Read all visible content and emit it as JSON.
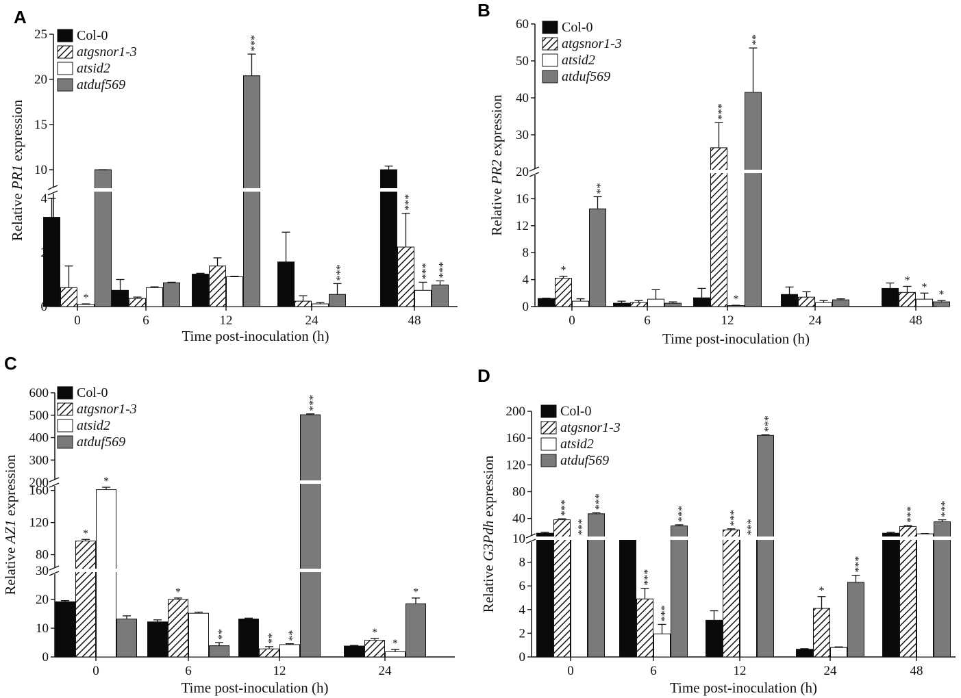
{
  "colors": {
    "col0": "#0a0a0a",
    "atgsnor": "#ffffff",
    "atsid2": "#ffffff",
    "atduf569": "#7a7a7a",
    "axis": "#111111"
  },
  "legend": [
    {
      "label": "Col-0",
      "italic": false
    },
    {
      "label": "atgsnor1-3",
      "italic": true
    },
    {
      "label": "atsid2",
      "italic": true
    },
    {
      "label": "atduf569",
      "italic": true
    }
  ],
  "chart_data": [
    {
      "panel": "A",
      "type": "bar",
      "ylabel_pre": "Relative ",
      "ylabel_gene": "PR1",
      "ylabel_post": " expression",
      "xlabel": "Time post-inoculation (h)",
      "categories": [
        "0",
        "6",
        "12",
        "24",
        "48"
      ],
      "lower_ticks": [
        "0",
        "2",
        "4"
      ],
      "upper_ticks": [
        "10",
        "15",
        "20",
        "25"
      ],
      "break": {
        "lower": [
          0,
          4.3
        ],
        "upper": [
          10,
          25
        ]
      },
      "series": [
        {
          "name": "Col-0",
          "values": [
            3.3,
            0.6,
            1.2,
            1.65,
            9.8
          ],
          "errors": [
            0.7,
            0.4,
            0.03,
            1.1,
            0.6
          ],
          "sig": [
            "",
            "",
            "",
            "",
            ""
          ]
        },
        {
          "name": "atgsnor1-3",
          "values": [
            0.7,
            0.3,
            1.5,
            0.2,
            2.2
          ],
          "errors": [
            0.8,
            0.05,
            0.3,
            0.2,
            1.25
          ],
          "sig": [
            "",
            "",
            "",
            "",
            "***"
          ]
        },
        {
          "name": "atsid2",
          "values": [
            0.08,
            0.7,
            1.1,
            0.1,
            0.6
          ],
          "errors": [
            0.02,
            0.03,
            0.02,
            0.05,
            0.3
          ],
          "sig": [
            "*",
            "",
            "",
            "",
            "***"
          ]
        },
        {
          "name": "atduf569",
          "values": [
            4.6,
            0.88,
            20.4,
            0.45,
            0.8
          ],
          "errors": [
            0.3,
            0.02,
            2.4,
            0.4,
            0.15
          ],
          "sig": [
            "",
            "",
            "***",
            "***",
            "***"
          ]
        }
      ]
    },
    {
      "panel": "B",
      "type": "bar",
      "ylabel_pre": "Relative ",
      "ylabel_gene": "PR2",
      "ylabel_post": " expression",
      "xlabel": "Time post-inoculation (h)",
      "categories": [
        "0",
        "6",
        "12",
        "24",
        "48"
      ],
      "lower_ticks": [
        "0",
        "4",
        "8",
        "12",
        "16",
        "20"
      ],
      "upper_ticks": [
        "30",
        "40",
        "50",
        "60"
      ],
      "break": {
        "lower": [
          0,
          20
        ],
        "upper": [
          20,
          60
        ]
      },
      "series": [
        {
          "name": "Col-0",
          "values": [
            1.2,
            0.5,
            1.3,
            1.8,
            2.7
          ],
          "errors": [
            0.05,
            0.3,
            1.4,
            1.1,
            0.8
          ],
          "sig": [
            "",
            "",
            "",
            "",
            ""
          ]
        },
        {
          "name": "atgsnor1-3",
          "values": [
            4.2,
            0.6,
            26.5,
            1.4,
            2.1
          ],
          "errors": [
            0.3,
            0.3,
            6.8,
            0.8,
            0.9
          ],
          "sig": [
            "*",
            "",
            "***",
            "",
            "*"
          ]
        },
        {
          "name": "atsid2",
          "values": [
            0.8,
            1.1,
            0.15,
            0.6,
            1.1
          ],
          "errors": [
            0.35,
            1.4,
            0.05,
            0.3,
            0.9
          ],
          "sig": [
            "",
            "",
            "*",
            "",
            "*"
          ]
        },
        {
          "name": "atduf569",
          "values": [
            14.5,
            0.5,
            41.5,
            1.0,
            0.7
          ],
          "errors": [
            1.8,
            0.2,
            12.0,
            0.15,
            0.2
          ],
          "sig": [
            "**",
            "",
            "**",
            "",
            "*"
          ]
        }
      ]
    },
    {
      "panel": "C",
      "type": "bar",
      "ylabel_pre": "Relative ",
      "ylabel_gene": "AZ1",
      "ylabel_post": " expression",
      "xlabel": "Time post-inoculation (h)",
      "categories": [
        "0",
        "6",
        "12",
        "24"
      ],
      "lower_ticks": [
        "0",
        "10",
        "20",
        "30"
      ],
      "middle_ticks": [
        "80",
        "120",
        "160"
      ],
      "upper_ticks": [
        "200",
        "300",
        "400",
        "500",
        "600"
      ],
      "break": {
        "lower": [
          0,
          30
        ],
        "middle": [
          60,
          170
        ],
        "upper": [
          200,
          600
        ]
      },
      "series": [
        {
          "name": "Col-0",
          "values": [
            19.2,
            12.2,
            13.2,
            3.8
          ],
          "errors": [
            0.4,
            0.7,
            0.3,
            0.2
          ],
          "sig": [
            "",
            "",
            "",
            ""
          ]
        },
        {
          "name": "atgsnor1-3",
          "values": [
            97,
            20,
            2.8,
            5.8
          ],
          "errors": [
            2,
            0.5,
            0.8,
            0.6
          ],
          "sig": [
            "*",
            "*",
            "**",
            "*"
          ]
        },
        {
          "name": "atsid2",
          "values": [
            161,
            15.2,
            4.3,
            1.8
          ],
          "errors": [
            3,
            0.4,
            0.3,
            0.8
          ],
          "sig": [
            "*",
            "",
            "**",
            "*"
          ]
        },
        {
          "name": "atduf569",
          "values": [
            13.2,
            3.9,
            502,
            18.5
          ],
          "errors": [
            1.1,
            1.1,
            4,
            2.0
          ],
          "sig": [
            "",
            "**",
            "***",
            "*"
          ]
        }
      ]
    },
    {
      "panel": "D",
      "type": "bar",
      "ylabel_pre": "Relative ",
      "ylabel_gene": "G3Pdh",
      "ylabel_post": " expression",
      "xlabel": "Time post-inoculation (h)",
      "categories": [
        "0",
        "6",
        "12",
        "24",
        "48"
      ],
      "lower_ticks": [
        "0",
        "2",
        "4",
        "6",
        "8",
        "10"
      ],
      "upper_ticks": [
        "40",
        "80",
        "120",
        "160",
        "200"
      ],
      "break": {
        "lower": [
          0,
          10
        ],
        "upper": [
          10,
          200
        ]
      },
      "series": [
        {
          "name": "Col-0",
          "values": [
            18,
            10.5,
            3.1,
            0.65,
            18
          ],
          "errors": [
            1.5,
            1,
            0.8,
            0.05,
            1.5
          ],
          "sig": [
            "",
            "",
            "",
            "",
            ""
          ]
        },
        {
          "name": "atgsnor1-3",
          "values": [
            38,
            4.9,
            23,
            4.1,
            28
          ],
          "errors": [
            1.5,
            0.9,
            1.5,
            1.0,
            1.5
          ],
          "sig": [
            "***",
            "***",
            "***",
            "*",
            "***"
          ]
        },
        {
          "name": "atsid2",
          "values": [
            10.6,
            1.95,
            10.5,
            0.8,
            17
          ],
          "errors": [
            0.3,
            0.8,
            0.3,
            0.05,
            0.5
          ],
          "sig": [
            "***",
            "***",
            "***",
            "",
            ""
          ]
        },
        {
          "name": "atduf569",
          "values": [
            47,
            29,
            164,
            6.3,
            35
          ],
          "errors": [
            1.5,
            1.5,
            1.0,
            0.6,
            3
          ],
          "sig": [
            "***",
            "***",
            "***",
            "***",
            "***"
          ]
        }
      ]
    }
  ]
}
